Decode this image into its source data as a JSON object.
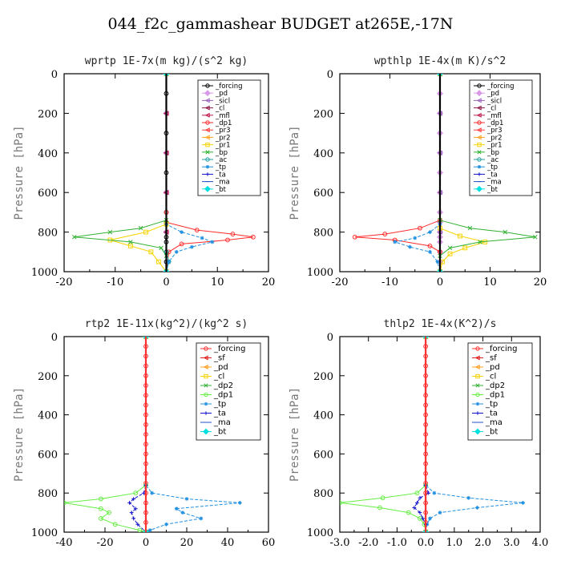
{
  "suptitle": "044_f2c_gammashear  BUDGET at265E,-17N",
  "chart_data": [
    {
      "type": "line",
      "title": "wprtp  1E-7x(m kg)/(s^2 kg)",
      "ylabel": "Pressure [hPa]",
      "xlim": [
        -20,
        20
      ],
      "ylim": [
        1000,
        0
      ],
      "xticks": [
        -20,
        -10,
        0,
        10,
        20
      ],
      "xticklabels": [
        "-20",
        "-10",
        "0",
        "10",
        "20"
      ],
      "yticks": [
        0,
        200,
        400,
        600,
        800,
        1000
      ],
      "legend_position": "top-right",
      "series": [
        {
          "name": "_forcing",
          "color": "#000000",
          "marker": "circle",
          "y": [
            0,
            100,
            200,
            300,
            400,
            500,
            600,
            700,
            750,
            800,
            825,
            850,
            900,
            950,
            1000
          ],
          "x": [
            0,
            0,
            0,
            0,
            0,
            0,
            0,
            0,
            0,
            0,
            0,
            0,
            0,
            0,
            0
          ]
        },
        {
          "name": "_pd",
          "color": "#d899e6",
          "marker": "diamond",
          "y": [
            0,
            200,
            400,
            600,
            800,
            1000
          ],
          "x": [
            0,
            0,
            0,
            0,
            0,
            0
          ]
        },
        {
          "name": "_sicl",
          "color": "#9b5fc0",
          "marker": "tri",
          "y": [
            0,
            200,
            400,
            600,
            800,
            1000
          ],
          "x": [
            0,
            0,
            0,
            0,
            0,
            0
          ]
        },
        {
          "name": "_cl",
          "color": "#8b1a4a",
          "marker": "tri",
          "y": [
            0,
            200,
            400,
            600,
            800,
            1000
          ],
          "x": [
            0,
            0,
            0,
            0,
            0,
            0
          ]
        },
        {
          "name": "_mfl",
          "color": "#c0184a",
          "marker": "tri",
          "y": [
            0,
            200,
            400,
            600,
            800,
            1000
          ],
          "x": [
            0,
            0,
            0,
            0,
            0,
            0
          ]
        },
        {
          "name": "_dp1",
          "color": "#ff2a2a",
          "marker": "circle",
          "y": [
            0,
            700,
            750,
            790,
            810,
            825,
            840,
            860,
            900,
            1000
          ],
          "x": [
            0,
            0,
            0,
            6,
            13,
            17,
            12,
            3,
            0.5,
            0
          ]
        },
        {
          "name": "_pr3",
          "color": "#ff3a3a",
          "marker": "tri",
          "y": [
            0,
            1000
          ],
          "x": [
            0,
            0
          ]
        },
        {
          "name": "_pr2",
          "color": "#ffa020",
          "marker": "tri",
          "y": [
            0,
            1000
          ],
          "x": [
            0,
            0
          ]
        },
        {
          "name": "_pr1",
          "color": "#f7d400",
          "marker": "square",
          "y": [
            0,
            760,
            800,
            840,
            870,
            900,
            950,
            1000
          ],
          "x": [
            0,
            0,
            -4,
            -11,
            -7,
            -3,
            -1.5,
            0
          ]
        },
        {
          "name": "_bp",
          "color": "#30b030",
          "marker": "x",
          "y": [
            0,
            740,
            780,
            800,
            825,
            850,
            880,
            920,
            1000
          ],
          "x": [
            0,
            0,
            -5,
            -11,
            -18,
            -7,
            -1,
            0,
            0
          ]
        },
        {
          "name": "_ac",
          "color": "#20a0a0",
          "marker": "circle",
          "y": [
            0,
            900,
            950,
            1000
          ],
          "x": [
            0,
            0,
            0.5,
            0
          ]
        },
        {
          "name": "_tp",
          "color": "#2090e0",
          "marker": "star",
          "y": [
            0,
            760,
            800,
            830,
            850,
            875,
            900,
            950,
            1000
          ],
          "x": [
            0,
            0,
            3,
            7,
            9,
            5,
            2,
            0.5,
            0
          ]
        },
        {
          "name": "_ta",
          "color": "#1010cc",
          "marker": "plus",
          "y": [
            0,
            1000
          ],
          "x": [
            0,
            0
          ]
        },
        {
          "name": "_ma",
          "color": "#2050c8",
          "marker": "dash",
          "y": [
            0,
            1000
          ],
          "x": [
            0,
            0
          ]
        },
        {
          "name": "_bt",
          "color": "#00e0e0",
          "marker": "diamond",
          "y": [
            0,
            1000
          ],
          "x": [
            0,
            0
          ]
        }
      ]
    },
    {
      "type": "line",
      "title": "wpthlp  1E-4x(m K)/s^2",
      "ylabel": "Pressure [hPa]",
      "xlim": [
        -20,
        20
      ],
      "ylim": [
        1000,
        0
      ],
      "xticks": [
        -20,
        -10,
        0,
        10,
        20
      ],
      "xticklabels": [
        "-20",
        "-10",
        "0",
        "10",
        "20"
      ],
      "yticks": [
        0,
        200,
        400,
        600,
        800,
        1000
      ],
      "legend_position": "top-right",
      "series": [
        {
          "name": "_forcing",
          "color": "#000000",
          "marker": "circle",
          "y": [
            0,
            1000
          ],
          "x": [
            0,
            0
          ]
        },
        {
          "name": "_pd",
          "color": "#d899e6",
          "marker": "diamond",
          "y": [
            0,
            100,
            200,
            300,
            400,
            500,
            600,
            700,
            750,
            800,
            825,
            850,
            900,
            950,
            1000
          ],
          "x": [
            0,
            0,
            0,
            0,
            0,
            0,
            0,
            0,
            0,
            0,
            0,
            0,
            0,
            0,
            0
          ]
        },
        {
          "name": "_sicl",
          "color": "#9b5fc0",
          "marker": "tri",
          "y": [
            0,
            200,
            400,
            600,
            800,
            1000
          ],
          "x": [
            0,
            0,
            0,
            0,
            0,
            0
          ]
        },
        {
          "name": "_cl",
          "color": "#8b1a4a",
          "marker": "tri",
          "y": [
            0,
            1000
          ],
          "x": [
            0,
            0
          ]
        },
        {
          "name": "_mfl",
          "color": "#c0184a",
          "marker": "tri",
          "y": [
            0,
            1000
          ],
          "x": [
            0,
            0
          ]
        },
        {
          "name": "_dp1",
          "color": "#ff2a2a",
          "marker": "circle",
          "y": [
            0,
            740,
            780,
            810,
            825,
            840,
            870,
            900,
            1000
          ],
          "x": [
            0,
            0,
            -4,
            -11,
            -17,
            -9,
            -2,
            0,
            0
          ]
        },
        {
          "name": "_pr3",
          "color": "#ff3a3a",
          "marker": "tri",
          "y": [
            0,
            1000
          ],
          "x": [
            0,
            0
          ]
        },
        {
          "name": "_pr2",
          "color": "#ffa020",
          "marker": "tri",
          "y": [
            0,
            1000
          ],
          "x": [
            0,
            0
          ]
        },
        {
          "name": "_pr1",
          "color": "#f7d400",
          "marker": "square",
          "y": [
            0,
            780,
            820,
            850,
            880,
            910,
            950,
            1000
          ],
          "x": [
            0,
            0,
            4,
            9,
            5,
            2,
            0.5,
            0
          ]
        },
        {
          "name": "_bp",
          "color": "#30b030",
          "marker": "x",
          "y": [
            0,
            740,
            780,
            800,
            825,
            850,
            880,
            920,
            1000
          ],
          "x": [
            0,
            0,
            6,
            13,
            19,
            8,
            2,
            0,
            0
          ]
        },
        {
          "name": "_ac",
          "color": "#20a0a0",
          "marker": "circle",
          "y": [
            0,
            1000
          ],
          "x": [
            0,
            0
          ]
        },
        {
          "name": "_tp",
          "color": "#2090e0",
          "marker": "star",
          "y": [
            0,
            760,
            800,
            830,
            850,
            875,
            900,
            950,
            1000
          ],
          "x": [
            0,
            0,
            -2,
            -5,
            -9,
            -6,
            -2,
            -0.5,
            0
          ]
        },
        {
          "name": "_ta",
          "color": "#1010cc",
          "marker": "plus",
          "y": [
            0,
            1000
          ],
          "x": [
            0,
            0
          ]
        },
        {
          "name": "_ma",
          "color": "#2050c8",
          "marker": "dash",
          "y": [
            0,
            1000
          ],
          "x": [
            0,
            0
          ]
        },
        {
          "name": "_bt",
          "color": "#00e0e0",
          "marker": "diamond",
          "y": [
            0,
            1000
          ],
          "x": [
            0,
            0
          ]
        }
      ]
    },
    {
      "type": "line",
      "title": "rtp2  1E-11x(kg^2)/(kg^2 s)",
      "ylabel": "Pressure [hPa]",
      "xlim": [
        -40,
        60
      ],
      "ylim": [
        1000,
        0
      ],
      "xticks": [
        -40,
        -20,
        0,
        20,
        40,
        60
      ],
      "xticklabels": [
        "-40",
        "-20",
        "0",
        "20",
        "40",
        "60"
      ],
      "yticks": [
        0,
        200,
        400,
        600,
        800,
        1000
      ],
      "legend_position": "top-right",
      "series": [
        {
          "name": "_forcing",
          "color": "#ff3030",
          "marker": "circle",
          "y": [
            0,
            50,
            100,
            150,
            200,
            250,
            300,
            350,
            400,
            450,
            500,
            550,
            600,
            650,
            700,
            750,
            800,
            850,
            900,
            950,
            1000
          ],
          "x": [
            0,
            0,
            0,
            0,
            0,
            0,
            0,
            0,
            0,
            0,
            0,
            0,
            0,
            0,
            0,
            0,
            0,
            0,
            0,
            0,
            0
          ]
        },
        {
          "name": "_sf",
          "color": "#e02020",
          "marker": "tri",
          "y": [
            0,
            1000
          ],
          "x": [
            0,
            0
          ]
        },
        {
          "name": "_pd",
          "color": "#ffa020",
          "marker": "tri",
          "y": [
            0,
            1000
          ],
          "x": [
            0,
            0
          ]
        },
        {
          "name": "_cl",
          "color": "#f7d400",
          "marker": "square",
          "y": [
            0,
            1000
          ],
          "x": [
            0,
            0
          ]
        },
        {
          "name": "_dp2",
          "color": "#30b030",
          "marker": "x",
          "y": [
            0,
            1000
          ],
          "x": [
            0,
            0
          ]
        },
        {
          "name": "_dp1",
          "color": "#66ee44",
          "marker": "circle",
          "y": [
            0,
            760,
            800,
            830,
            850,
            880,
            900,
            930,
            960,
            990,
            1000
          ],
          "x": [
            0,
            0,
            -5,
            -22,
            -40,
            -22,
            -18,
            -22,
            -15,
            -3,
            0
          ]
        },
        {
          "name": "_tp",
          "color": "#2090e0",
          "marker": "star",
          "y": [
            0,
            760,
            800,
            830,
            850,
            880,
            900,
            930,
            960,
            990,
            1000
          ],
          "x": [
            0,
            0,
            3,
            20,
            46,
            15,
            18,
            27,
            10,
            2,
            0
          ]
        },
        {
          "name": "_ta",
          "color": "#1010cc",
          "marker": "plus",
          "y": [
            0,
            760,
            800,
            830,
            850,
            880,
            900,
            930,
            960,
            1000
          ],
          "x": [
            0,
            0,
            -1,
            -6,
            -8,
            -5,
            -7,
            -6,
            -4,
            0
          ]
        },
        {
          "name": "_ma",
          "color": "#2050c8",
          "marker": "dash",
          "y": [
            0,
            1000
          ],
          "x": [
            0,
            0
          ]
        },
        {
          "name": "_bt",
          "color": "#00e0e0",
          "marker": "diamond",
          "y": [
            0,
            1000
          ],
          "x": [
            0,
            0
          ]
        }
      ]
    },
    {
      "type": "line",
      "title": "thlp2  1E-4x(K^2)/s",
      "ylabel": "Pressure [hPa]",
      "xlim": [
        -3.0,
        4.0
      ],
      "ylim": [
        1000,
        0
      ],
      "xticks": [
        -3.0,
        -2.0,
        -1.0,
        0.0,
        1.0,
        2.0,
        3.0,
        4.0
      ],
      "xticklabels": [
        "-3.0",
        "-2.0",
        "-1.0",
        "0.0",
        "1.0",
        "2.0",
        "3.0",
        "4.0"
      ],
      "yticks": [
        0,
        200,
        400,
        600,
        800,
        1000
      ],
      "legend_position": "top-right",
      "series": [
        {
          "name": "_forcing",
          "color": "#ff3030",
          "marker": "circle",
          "y": [
            0,
            50,
            100,
            150,
            200,
            250,
            300,
            350,
            400,
            450,
            500,
            550,
            600,
            650,
            700,
            750,
            800,
            850,
            900,
            950,
            1000
          ],
          "x": [
            0,
            0,
            0,
            0,
            0,
            0,
            0,
            0,
            0,
            0,
            0,
            0,
            0,
            0,
            0,
            0,
            0,
            0,
            0,
            0,
            0
          ]
        },
        {
          "name": "_sf",
          "color": "#e02020",
          "marker": "tri",
          "y": [
            0,
            1000
          ],
          "x": [
            0,
            0
          ]
        },
        {
          "name": "_pd",
          "color": "#ffa020",
          "marker": "tri",
          "y": [
            0,
            1000
          ],
          "x": [
            0,
            0
          ]
        },
        {
          "name": "_cl",
          "color": "#f7d400",
          "marker": "square",
          "y": [
            0,
            1000
          ],
          "x": [
            0,
            0
          ]
        },
        {
          "name": "_dp2",
          "color": "#30b030",
          "marker": "x",
          "y": [
            0,
            1000
          ],
          "x": [
            0,
            0
          ]
        },
        {
          "name": "_dp1",
          "color": "#66ee44",
          "marker": "circle",
          "y": [
            0,
            760,
            800,
            825,
            850,
            875,
            900,
            930,
            960,
            1000
          ],
          "x": [
            0,
            0,
            -0.3,
            -1.5,
            -3.0,
            -1.6,
            -0.6,
            -0.2,
            -0.05,
            0
          ]
        },
        {
          "name": "_tp",
          "color": "#2090e0",
          "marker": "star",
          "y": [
            0,
            760,
            800,
            825,
            850,
            875,
            900,
            930,
            960,
            1000
          ],
          "x": [
            0,
            0,
            0.3,
            1.5,
            3.4,
            1.8,
            0.5,
            0.15,
            0.05,
            0
          ]
        },
        {
          "name": "_ta",
          "color": "#1010cc",
          "marker": "plus",
          "y": [
            0,
            760,
            800,
            825,
            850,
            875,
            900,
            930,
            960,
            1000
          ],
          "x": [
            0,
            0,
            0.1,
            -0.2,
            -0.3,
            -0.4,
            -0.2,
            -0.1,
            0,
            0
          ]
        },
        {
          "name": "_ma",
          "color": "#2050c8",
          "marker": "dash",
          "y": [
            0,
            1000
          ],
          "x": [
            0,
            0
          ]
        },
        {
          "name": "_bt",
          "color": "#00e0e0",
          "marker": "diamond",
          "y": [
            0,
            1000
          ],
          "x": [
            0,
            0
          ]
        }
      ]
    }
  ]
}
